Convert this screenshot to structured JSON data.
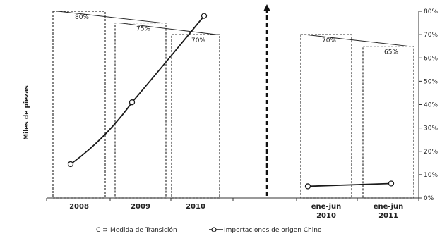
{
  "chart_data": {
    "type": "bar",
    "ylabel": "Miles de piezas",
    "categories": [
      {
        "lines": [
          "2008"
        ]
      },
      {
        "lines": [
          "2009"
        ]
      },
      {
        "lines": [
          "2010"
        ]
      },
      {
        "lines": [
          "ene-jun",
          "2010"
        ]
      },
      {
        "lines": [
          "ene-jun",
          "2011"
        ]
      }
    ],
    "right_axis": {
      "ticks": [
        "0%",
        "10%",
        "20%",
        "30%",
        "40%",
        "50%",
        "60%",
        "70%",
        "80%"
      ],
      "ylim": [
        0,
        80
      ]
    },
    "series": [
      {
        "name": "Medida de Transición",
        "kind": "bar",
        "values": [
          80,
          75,
          70,
          70,
          65
        ],
        "labels": [
          "80%",
          "75%",
          "70%",
          "70%",
          "65%"
        ]
      },
      {
        "name": "Importaciones de origen Chino",
        "kind": "line",
        "values": [
          14.5,
          41,
          78,
          5,
          6.2
        ]
      }
    ],
    "legend": {
      "position": "bottom",
      "bar_prefix": "C ⊃",
      "items": [
        "Medida de Transición",
        "Importaciones de origen Chino"
      ]
    },
    "colors": {
      "bar_border": "#333333",
      "line": "#1a1a1a",
      "axis": "#333333"
    }
  }
}
